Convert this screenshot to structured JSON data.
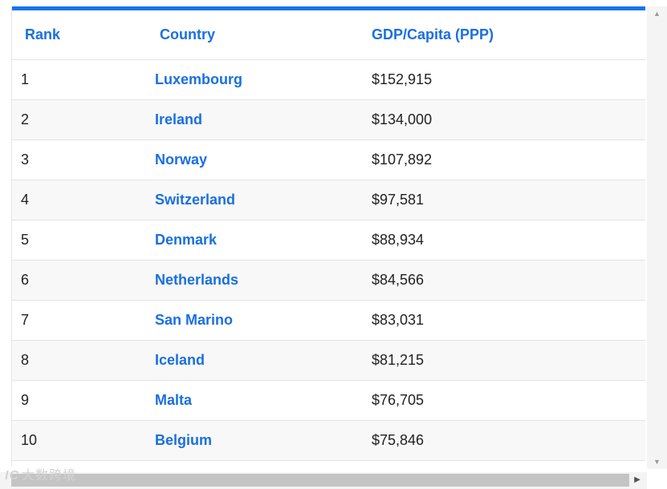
{
  "table": {
    "headers": {
      "rank": "Rank",
      "country": "Country",
      "gdp": "GDP/Capita (PPP)"
    },
    "rows": [
      {
        "rank": "1",
        "country": "Luxembourg",
        "gdp": "$152,915"
      },
      {
        "rank": "2",
        "country": "Ireland",
        "gdp": "$134,000"
      },
      {
        "rank": "3",
        "country": "Norway",
        "gdp": "$107,892"
      },
      {
        "rank": "4",
        "country": "Switzerland",
        "gdp": "$97,581"
      },
      {
        "rank": "5",
        "country": "Denmark",
        "gdp": "$88,934"
      },
      {
        "rank": "6",
        "country": "Netherlands",
        "gdp": "$84,566"
      },
      {
        "rank": "7",
        "country": "San Marino",
        "gdp": "$83,031"
      },
      {
        "rank": "8",
        "country": "Iceland",
        "gdp": "$81,215"
      },
      {
        "rank": "9",
        "country": "Malta",
        "gdp": "$76,705"
      },
      {
        "rank": "10",
        "country": "Belgium",
        "gdp": "$75,846"
      }
    ]
  },
  "colors": {
    "accent": "#1a73e8",
    "link": "#1a6fe0",
    "stripe": "#f8f8f8"
  },
  "scrollbars": {
    "up_arrow": "▲",
    "down_arrow": "▼",
    "right_arrow": "▶"
  },
  "watermark": {
    "logo": "IC",
    "text": "大数跨境"
  }
}
